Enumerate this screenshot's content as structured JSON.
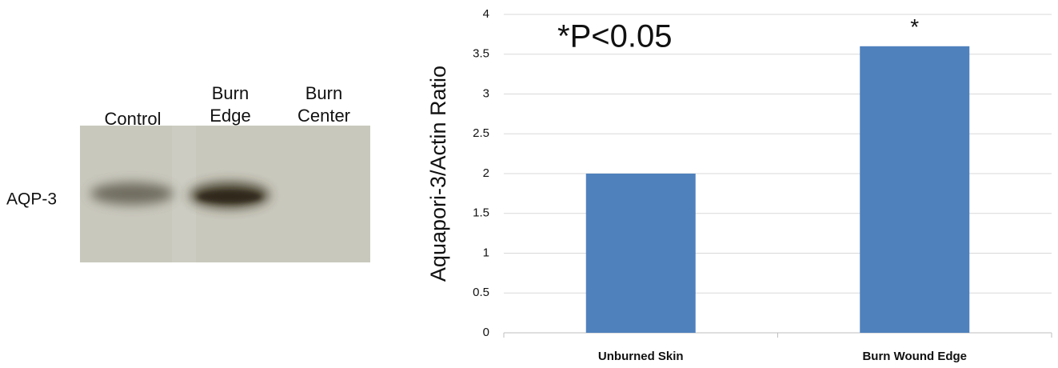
{
  "blot": {
    "lanes": [
      [
        "Control"
      ],
      [
        "Burn",
        "Edge"
      ],
      [
        "Burn",
        "Center"
      ]
    ],
    "row_label": "AQP-3"
  },
  "chart_data": {
    "type": "bar",
    "ylabel": "Aquapori-3/Actin Ratio",
    "annotation": "*P<0.05",
    "categories": [
      "Unburned Skin",
      "Burn Wound Edge"
    ],
    "values": [
      2,
      3.6
    ],
    "significance_marks": [
      null,
      "*"
    ],
    "color": "#4f81bd",
    "ylim": [
      0,
      4
    ],
    "yticks": [
      0,
      0.5,
      1,
      1.5,
      2,
      2.5,
      3,
      3.5,
      4
    ],
    "grid": true
  }
}
